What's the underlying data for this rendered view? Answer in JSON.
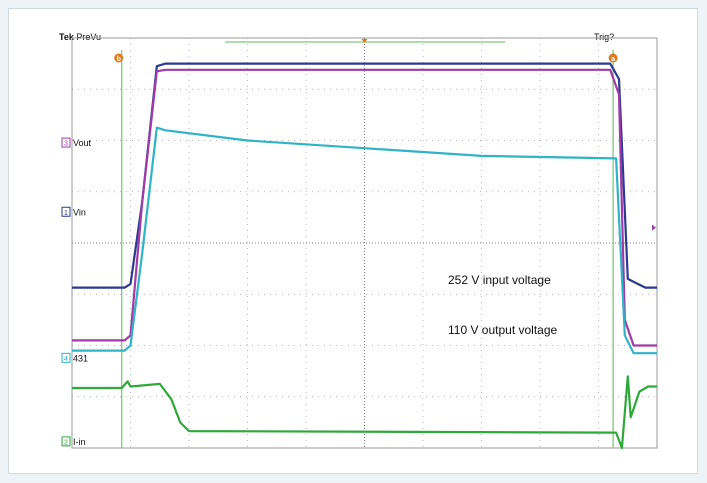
{
  "header": {
    "brand": "Tek",
    "mode": "PreVu",
    "trigger_status": "Trig?"
  },
  "channel_labels": [
    {
      "id": "3",
      "name": "Vout",
      "color": "#a03aa8"
    },
    {
      "id": "1",
      "name": "Vin",
      "color": "#2b3a8f"
    },
    {
      "id": "4",
      "name": "431",
      "color": "#2fb3c6"
    },
    {
      "id": "2",
      "name": "I-in",
      "color": "#2fa83a"
    }
  ],
  "markers": {
    "a": "a",
    "b": "b"
  },
  "annotations": {
    "input": "252 V input voltage",
    "output": "110 V output voltage"
  },
  "colors": {
    "grid": "#9a9a9a",
    "vin": "#2b3a8f",
    "vout": "#a03aa8",
    "ch431": "#2fb3c6",
    "iin": "#2fa83a",
    "cursor": "#7fc97f",
    "marker": "#e07a1f"
  },
  "chart_data": {
    "type": "line",
    "title": "",
    "xlabel": "",
    "ylabel": "",
    "divisions": {
      "x": 10,
      "y": 8
    },
    "xlim": [
      0,
      10
    ],
    "ylim": [
      0,
      8
    ],
    "series": [
      {
        "name": "Vin",
        "x": [
          0,
          0.9,
          1.0,
          1.2,
          1.45,
          1.6,
          9.2,
          9.35,
          9.5,
          9.8,
          10
        ],
        "y": [
          3.13,
          3.13,
          3.2,
          4.8,
          7.45,
          7.5,
          7.5,
          7.2,
          3.3,
          3.13,
          3.13
        ]
      },
      {
        "name": "Vout",
        "x": [
          0,
          0.9,
          1.0,
          1.2,
          1.45,
          1.6,
          9.2,
          9.35,
          9.45,
          9.6,
          10
        ],
        "y": [
          2.1,
          2.1,
          2.2,
          4.8,
          7.35,
          7.38,
          7.38,
          6.9,
          2.5,
          2.0,
          2.0
        ]
      },
      {
        "name": "431",
        "x": [
          0,
          0.9,
          1.0,
          1.2,
          1.45,
          1.6,
          3,
          5,
          7,
          9.3,
          9.45,
          9.6,
          10
        ],
        "y": [
          1.9,
          1.9,
          2.0,
          3.8,
          6.25,
          6.2,
          6.0,
          5.85,
          5.7,
          5.65,
          2.2,
          1.85,
          1.85
        ]
      },
      {
        "name": "I-in",
        "x": [
          0,
          0.85,
          0.95,
          1.0,
          1.5,
          1.7,
          1.85,
          2.0,
          9.3,
          9.4,
          9.5,
          9.55,
          9.7,
          9.85,
          10
        ],
        "y": [
          1.17,
          1.17,
          1.3,
          1.2,
          1.25,
          0.95,
          0.5,
          0.33,
          0.3,
          0.0,
          1.4,
          0.6,
          1.1,
          1.2,
          1.2
        ]
      }
    ],
    "cursors_x": [
      0.85,
      9.25
    ]
  }
}
